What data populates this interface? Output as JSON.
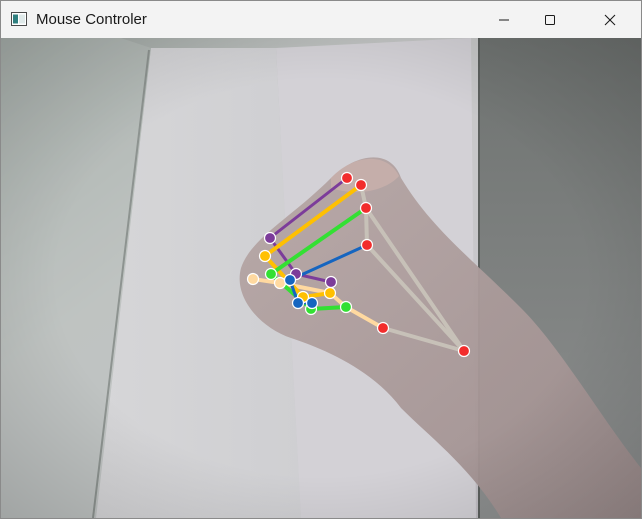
{
  "window": {
    "title": "Mouse Controler",
    "icon": "app-window-icon",
    "controls": [
      {
        "name": "minimize-button",
        "icon": "minimize-icon"
      },
      {
        "name": "maximize-button",
        "icon": "maximize-icon"
      },
      {
        "name": "close-button",
        "icon": "close-icon"
      }
    ]
  },
  "hand_overlay": {
    "joint_color_palm": "#f22c2c",
    "finger_colors": {
      "thumb": "#ffd9a0",
      "index": "#7c3c9a",
      "middle": "#ffc000",
      "ring": "#33e033",
      "pinky": "#1565c0"
    },
    "palm_connector_color": "#c7c1b8"
  }
}
